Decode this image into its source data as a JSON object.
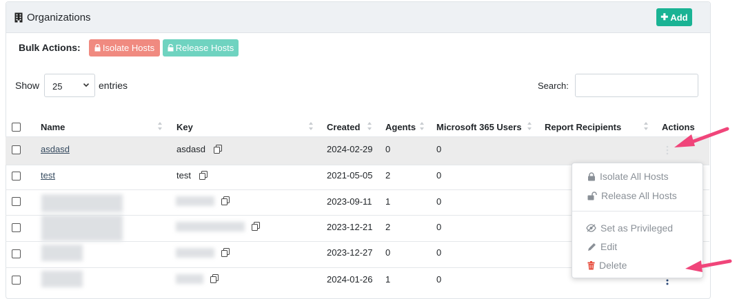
{
  "header": {
    "title": "Organizations",
    "add_label": "Add"
  },
  "bulk": {
    "label": "Bulk Actions:",
    "isolate_label": "Isolate Hosts",
    "release_label": "Release Hosts"
  },
  "controls": {
    "show_label": "Show",
    "page_size": "25",
    "entries_label": "entries",
    "search_label": "Search:",
    "search_value": ""
  },
  "table": {
    "columns": [
      "Name",
      "Key",
      "Created",
      "Agents",
      "Microsoft 365 Users",
      "Report Recipients",
      "Actions"
    ],
    "rows": [
      {
        "name": "asdasd",
        "key": "asdasd",
        "created": "2024-02-29",
        "agents": "0",
        "m365": "0"
      },
      {
        "name": "test",
        "key": "test",
        "created": "2021-05-05",
        "agents": "2",
        "m365": "0"
      },
      {
        "name": "",
        "key": "",
        "created": "2023-09-11",
        "agents": "1",
        "m365": "0"
      },
      {
        "name": "",
        "key": "",
        "created": "2023-12-21",
        "agents": "2",
        "m365": "0"
      },
      {
        "name": "",
        "key": "",
        "created": "2023-12-27",
        "agents": "0",
        "m365": "0"
      },
      {
        "name": "",
        "key": "",
        "created": "2024-01-26",
        "agents": "1",
        "m365": "0"
      }
    ]
  },
  "menu": {
    "isolate_all": "Isolate All Hosts",
    "release_all": "Release All Hosts",
    "set_privileged": "Set as Privileged",
    "edit": "Edit",
    "delete": "Delete"
  },
  "colors": {
    "accent": "#1ab394",
    "isolate": "#f08a80",
    "release": "#6fd3c0",
    "delete": "#e74c3c",
    "annotation_arrow": "#f0457a"
  }
}
